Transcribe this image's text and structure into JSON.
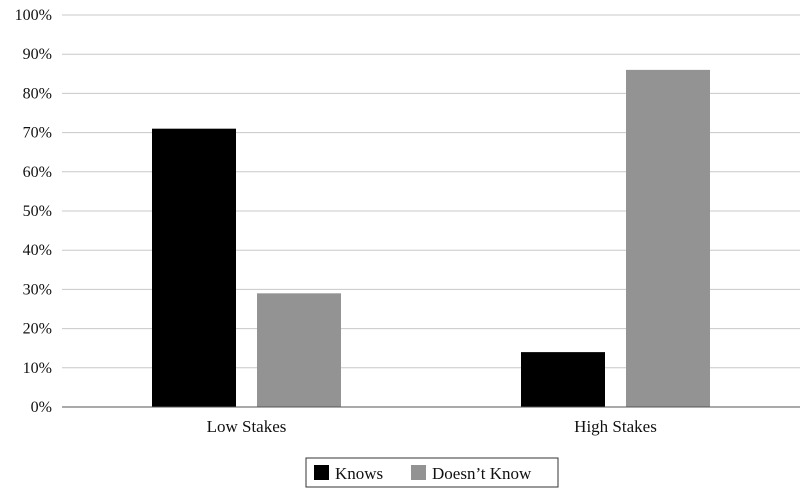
{
  "chart_data": {
    "type": "bar",
    "categories": [
      "Low Stakes",
      "High Stakes"
    ],
    "series": [
      {
        "name": "Knows",
        "values": [
          71,
          14
        ],
        "color": "#000000"
      },
      {
        "name": "Doesn't Know",
        "values": [
          29,
          86
        ],
        "color": "#939393"
      }
    ],
    "yticks": [
      "0%",
      "10%",
      "20%",
      "30%",
      "40%",
      "50%",
      "60%",
      "70%",
      "80%",
      "90%",
      "100%"
    ],
    "ylim": [
      0,
      100
    ],
    "grid": true,
    "legend_position": "bottom",
    "legend": [
      "Knows",
      "Doesn’t Know"
    ]
  }
}
